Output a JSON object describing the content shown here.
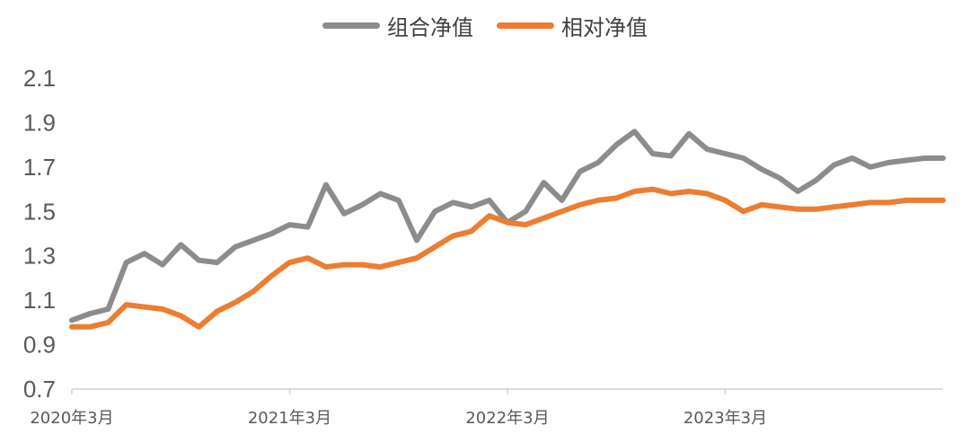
{
  "legend": [
    {
      "label": "组合净值",
      "color": "#8c8c8c"
    },
    {
      "label": "相对净值",
      "color": "#ed7d31"
    }
  ],
  "chart_data": {
    "type": "line",
    "title": "",
    "xlabel": "",
    "ylabel": "",
    "xlim": [
      "2020-03",
      "2024-03"
    ],
    "ylim": [
      0.7,
      2.1
    ],
    "y_ticks": [
      "2.1",
      "1.9",
      "1.7",
      "1.5",
      "1.3",
      "1.1",
      "0.9",
      "0.7"
    ],
    "y_tick_values": [
      2.1,
      1.9,
      1.7,
      1.5,
      1.3,
      1.1,
      0.9,
      0.7
    ],
    "x_ticks": [
      "2020年3月",
      "2021年3月",
      "2022年3月",
      "2023年3月"
    ],
    "x_tick_values": [
      "2020-03",
      "2021-03",
      "2022-03",
      "2023-03"
    ],
    "grid": false,
    "legend_position": "top-center",
    "series": [
      {
        "name": "组合净值",
        "color": "#8c8c8c",
        "x": [
          "2020-03",
          "2020-04",
          "2020-05",
          "2020-06",
          "2020-07",
          "2020-08",
          "2020-09",
          "2020-10",
          "2020-11",
          "2020-12",
          "2021-01",
          "2021-02",
          "2021-03",
          "2021-04",
          "2021-05",
          "2021-06",
          "2021-07",
          "2021-08",
          "2021-09",
          "2021-10",
          "2021-11",
          "2021-12",
          "2022-01",
          "2022-02",
          "2022-03",
          "2022-04",
          "2022-05",
          "2022-06",
          "2022-07",
          "2022-08",
          "2022-09",
          "2022-10",
          "2022-11",
          "2022-12",
          "2023-01",
          "2023-02",
          "2023-03",
          "2023-04",
          "2023-05",
          "2023-06",
          "2023-07",
          "2023-08",
          "2023-09",
          "2023-10",
          "2023-11",
          "2023-12",
          "2024-01",
          "2024-02",
          "2024-03"
        ],
        "values": [
          1.01,
          1.04,
          1.06,
          1.27,
          1.31,
          1.26,
          1.35,
          1.28,
          1.27,
          1.34,
          1.37,
          1.4,
          1.44,
          1.43,
          1.62,
          1.49,
          1.53,
          1.58,
          1.55,
          1.37,
          1.5,
          1.54,
          1.52,
          1.55,
          1.45,
          1.5,
          1.63,
          1.55,
          1.68,
          1.72,
          1.8,
          1.86,
          1.76,
          1.75,
          1.85,
          1.78,
          1.76,
          1.74,
          1.69,
          1.65,
          1.59,
          1.64,
          1.71,
          1.74,
          1.7,
          1.72,
          1.73,
          1.74,
          1.74
        ]
      },
      {
        "name": "相对净值",
        "color": "#ed7d31",
        "x": [
          "2020-03",
          "2020-04",
          "2020-05",
          "2020-06",
          "2020-07",
          "2020-08",
          "2020-09",
          "2020-10",
          "2020-11",
          "2020-12",
          "2021-01",
          "2021-02",
          "2021-03",
          "2021-04",
          "2021-05",
          "2021-06",
          "2021-07",
          "2021-08",
          "2021-09",
          "2021-10",
          "2021-11",
          "2021-12",
          "2022-01",
          "2022-02",
          "2022-03",
          "2022-04",
          "2022-05",
          "2022-06",
          "2022-07",
          "2022-08",
          "2022-09",
          "2022-10",
          "2022-11",
          "2022-12",
          "2023-01",
          "2023-02",
          "2023-03",
          "2023-04",
          "2023-05",
          "2023-06",
          "2023-07",
          "2023-08",
          "2023-09",
          "2023-10",
          "2023-11",
          "2023-12",
          "2024-01",
          "2024-02",
          "2024-03"
        ],
        "values": [
          0.98,
          0.98,
          1.0,
          1.08,
          1.07,
          1.06,
          1.03,
          0.98,
          1.05,
          1.09,
          1.14,
          1.21,
          1.27,
          1.29,
          1.25,
          1.26,
          1.26,
          1.25,
          1.27,
          1.29,
          1.34,
          1.39,
          1.41,
          1.48,
          1.45,
          1.44,
          1.47,
          1.5,
          1.53,
          1.55,
          1.56,
          1.59,
          1.6,
          1.58,
          1.59,
          1.58,
          1.55,
          1.5,
          1.53,
          1.52,
          1.51,
          1.51,
          1.52,
          1.53,
          1.54,
          1.54,
          1.55,
          1.55,
          1.55
        ]
      }
    ]
  }
}
